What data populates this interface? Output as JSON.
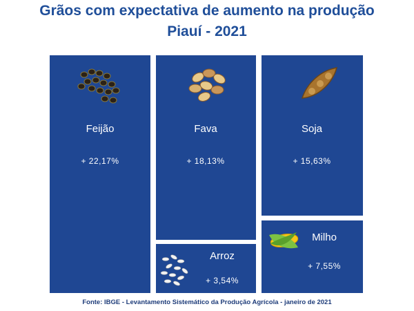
{
  "header": {
    "title": [
      "Grãos com expectativa de aumento na produção",
      "Piauí - 2021"
    ]
  },
  "tiles": [
    {
      "label": "Feijão",
      "value": "+ 22,17%"
    },
    {
      "label": "Fava",
      "value": "+ 18,13%"
    },
    {
      "label": "Soja",
      "value": "+ 15,63%"
    },
    {
      "label": "Arroz",
      "value": "+ 3,54%"
    },
    {
      "label": "Milho",
      "value": "+ 7,55%"
    }
  ],
  "footer": {
    "source": "Fonte: IBGE - Levantamento Sistemático da Produção Agrícola - janeiro de 2021"
  }
}
